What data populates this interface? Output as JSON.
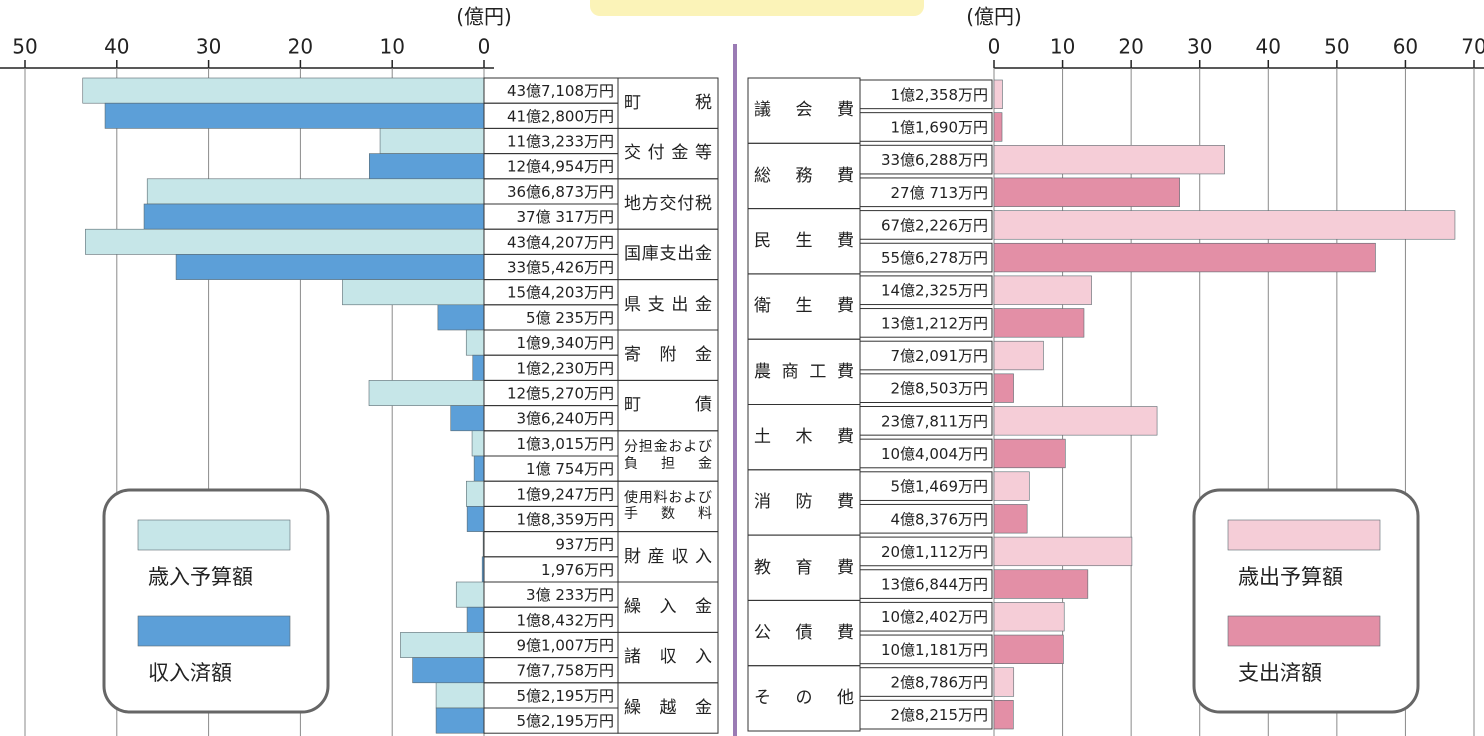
{
  "chart_data": [
    {
      "type": "bar",
      "orientation": "horizontal",
      "axis_label": "(億円)",
      "categories": [
        "町税",
        "交付金等",
        "地方交付税",
        "国庫支出金",
        "県支出金",
        "寄附金",
        "町債",
        "分担金および負担金",
        "使用料および手数料",
        "財産収入",
        "繰入金",
        "諸収入",
        "繰越金"
      ],
      "series": [
        {
          "name": "歳入予算額",
          "color": "#c6e6e8",
          "values": [
            43.7108,
            11.3233,
            36.6873,
            43.4207,
            15.4203,
            1.934,
            12.527,
            1.3015,
            1.9247,
            0.0937,
            3.0233,
            9.1007,
            5.2195
          ],
          "value_labels": [
            "43億7,108万円",
            "11億3,233万円",
            "36億6,873万円",
            "43億4,207万円",
            "15億4,203万円",
            "1億9,340万円",
            "12億5,270万円",
            "1億3,015万円",
            "1億9,247万円",
            "937万円",
            "3億 233万円",
            "9億1,007万円",
            "5億2,195万円"
          ]
        },
        {
          "name": "収入済額",
          "color": "#5c9fd8",
          "values": [
            41.28,
            12.4954,
            37.0317,
            33.5426,
            5.0235,
            1.223,
            3.624,
            1.0754,
            1.8359,
            0.1976,
            1.8432,
            7.7758,
            5.2195
          ],
          "value_labels": [
            "41億2,800万円",
            "12億4,954万円",
            "37億 317万円",
            "33億5,426万円",
            "5億 235万円",
            "1億2,230万円",
            "3億6,240万円",
            "1億 754万円",
            "1億8,359万円",
            "1,976万円",
            "1億8,432万円",
            "7億7,758万円",
            "5億2,195万円"
          ]
        }
      ],
      "xlim": [
        50,
        0
      ],
      "xticks": [
        50,
        40,
        30,
        20,
        10,
        0
      ],
      "grid": true,
      "legend": "lower left"
    },
    {
      "type": "bar",
      "orientation": "horizontal",
      "axis_label": "(億円)",
      "categories": [
        "議会費",
        "総務費",
        "民生費",
        "衛生費",
        "農商工費",
        "土木費",
        "消防費",
        "教育費",
        "公債費",
        "その他"
      ],
      "series": [
        {
          "name": "歳出予算額",
          "color": "#f5cdd7",
          "values": [
            1.2358,
            33.6288,
            67.2226,
            14.2325,
            7.2091,
            23.7811,
            5.1469,
            20.1112,
            10.2402,
            2.8786
          ],
          "value_labels": [
            "1億2,358万円",
            "33億6,288万円",
            "67億2,226万円",
            "14億2,325万円",
            "7億2,091万円",
            "23億7,811万円",
            "5億1,469万円",
            "20億1,112万円",
            "10億2,402万円",
            "2億8,786万円"
          ]
        },
        {
          "name": "支出済額",
          "color": "#e38fa6",
          "values": [
            1.169,
            27.0713,
            55.6278,
            13.1212,
            2.8503,
            10.4004,
            4.8376,
            13.6844,
            10.1181,
            2.8215
          ],
          "value_labels": [
            "1億1,690万円",
            "27億 713万円",
            "55億6,278万円",
            "13億1,212万円",
            "2億8,503万円",
            "10億4,004万円",
            "4億8,376万円",
            "13億6,844万円",
            "10億1,181万円",
            "2億8,215万円"
          ]
        }
      ],
      "xlim": [
        0,
        70
      ],
      "xticks": [
        0,
        10,
        20,
        30,
        40,
        50,
        60,
        70
      ],
      "grid": true,
      "legend": "lower right"
    }
  ]
}
